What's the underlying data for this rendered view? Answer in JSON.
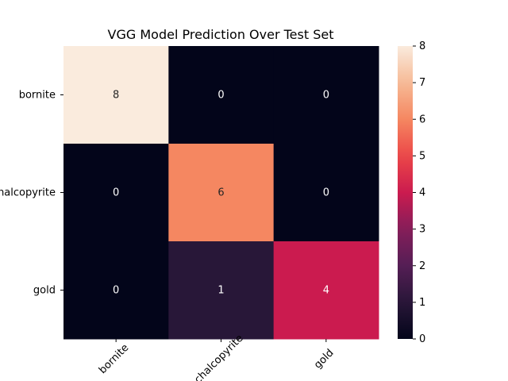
{
  "chart_data": {
    "type": "heatmap",
    "title": "VGG Model Prediction Over Test Set",
    "xlabel": "",
    "ylabel": "",
    "x_categories": [
      "bornite",
      "chalcopyrite",
      "gold"
    ],
    "y_categories": [
      "bornite",
      "chalcopyrite",
      "gold"
    ],
    "matrix": [
      [
        8,
        0,
        0
      ],
      [
        0,
        6,
        0
      ],
      [
        0,
        1,
        4
      ]
    ],
    "annotations": true,
    "colormap": "rocket",
    "vmin": 0,
    "vmax": 8,
    "colorbar_ticks": [
      0,
      1,
      2,
      3,
      4,
      5,
      6,
      7,
      8
    ],
    "x_tick_rotation": 45
  }
}
